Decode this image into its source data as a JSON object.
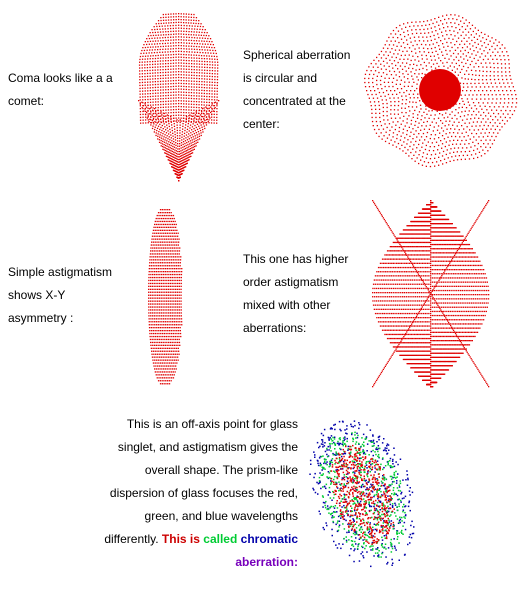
{
  "sections": [
    {
      "id": "coma",
      "lines": [
        "Coma looks like a a",
        "comet:"
      ]
    },
    {
      "id": "spherical",
      "lines": [
        "Spherical aberration",
        "is circular and",
        "concentrated at the",
        "center:"
      ]
    },
    {
      "id": "simple_astig",
      "lines": [
        "Simple astigmatism",
        "shows X-Y",
        "asymmetry :"
      ]
    },
    {
      "id": "higher_astig",
      "lines": [
        "This one has higher",
        "order astigmatism",
        "mixed with other",
        "aberrations:"
      ]
    }
  ],
  "offaxis": {
    "lines": [
      "This is an off-axis point for glass",
      "singlet, and astigmatism gives the",
      "overall shape. The prism-like",
      "dispersion of glass focuses the red,",
      "green, and blue wavelengths"
    ],
    "last_line_plain": "differently. ",
    "this_is": "This is",
    "called": "called",
    "chromatic": "chromatic",
    "aberration": "aberration:"
  },
  "colors": {
    "dot_red": "#e00000",
    "green": "#00cc33",
    "blue": "#0000aa",
    "purple": "#7700bb"
  }
}
